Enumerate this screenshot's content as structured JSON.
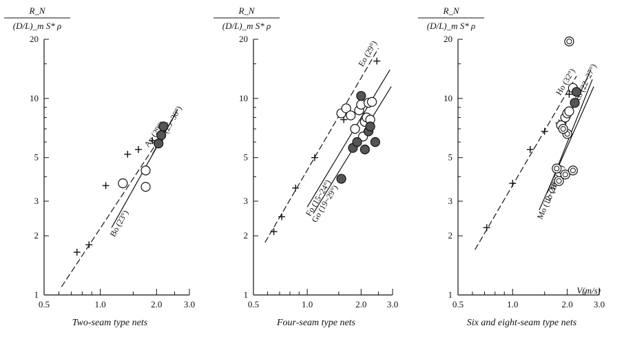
{
  "chart_data": [
    {
      "type": "scatter",
      "panel": "two-seam",
      "caption": "Two-seam type nets",
      "ylabel_num": "R_N",
      "ylabel_den": "(D/L)_m S* ρ",
      "xlabel": "",
      "xlim": [
        0.5,
        3.0
      ],
      "ylim": [
        1,
        20
      ],
      "log_x": true,
      "log_y": true,
      "x_ticks": [
        0.5,
        1.0,
        2.0,
        3.0
      ],
      "x_tick_labels": [
        "0.5",
        "1.0",
        "2.0",
        "3.0"
      ],
      "y_ticks": [
        1,
        2,
        3,
        5,
        10,
        20
      ],
      "y_tick_labels": [
        "1",
        "2",
        "3",
        "5",
        "10",
        "20"
      ],
      "lines": [
        {
          "label": "Ap (29°)",
          "style": "dashed",
          "points": [
            [
              0.62,
              1.1
            ],
            [
              2.25,
              7.0
            ]
          ]
        },
        {
          "label": "Do (25~30°)",
          "style": "solid",
          "points": [
            [
              1.9,
              5.2
            ],
            [
              2.6,
              8.8
            ]
          ]
        },
        {
          "label": "Bo (23°)",
          "style": "solid",
          "points": [
            [
              1.15,
              2.2
            ],
            [
              2.55,
              8.5
            ]
          ]
        }
      ],
      "series": [
        {
          "marker": "cross",
          "points": [
            [
              0.75,
              1.65
            ],
            [
              0.87,
              1.8
            ],
            [
              1.07,
              3.6
            ],
            [
              1.4,
              5.2
            ],
            [
              1.6,
              5.5
            ],
            [
              1.9,
              6.1
            ],
            [
              2.1,
              6.6
            ]
          ]
        },
        {
          "marker": "open-circle",
          "points": [
            [
              1.32,
              3.7
            ],
            [
              1.75,
              4.3
            ],
            [
              1.75,
              3.55
            ]
          ]
        },
        {
          "marker": "filled-circle",
          "points": [
            [
              2.05,
              5.9
            ],
            [
              2.12,
              6.5
            ],
            [
              2.18,
              7.2
            ]
          ]
        }
      ]
    },
    {
      "type": "scatter",
      "panel": "four-seam",
      "caption": "Four-seam type nets",
      "ylabel_num": "R_N",
      "ylabel_den": "(D/L)_m S* ρ",
      "xlabel": "",
      "xlim": [
        0.5,
        3.0
      ],
      "ylim": [
        1,
        20
      ],
      "log_x": true,
      "log_y": true,
      "x_ticks": [
        0.5,
        1.0,
        2.0,
        3.0
      ],
      "x_tick_labels": [
        "0.5",
        "1.0",
        "2.0",
        "3.0"
      ],
      "y_ticks": [
        1,
        2,
        3,
        5,
        10,
        20
      ],
      "y_tick_labels": [
        "1",
        "2",
        "3",
        "5",
        "10",
        "20"
      ],
      "lines": [
        {
          "label": "Eo (29°)",
          "style": "dashed",
          "points": [
            [
              0.58,
              1.85
            ],
            [
              2.5,
              18.0
            ]
          ]
        },
        {
          "label": "Fo (15~24°)",
          "style": "solid",
          "points": [
            [
              1.0,
              2.8
            ],
            [
              2.9,
              14.0
            ]
          ]
        },
        {
          "label": "Go (19~29°)",
          "style": "solid",
          "points": [
            [
              1.08,
              2.6
            ],
            [
              2.95,
              11.5
            ]
          ]
        }
      ],
      "series": [
        {
          "marker": "cross",
          "points": [
            [
              0.65,
              2.1
            ],
            [
              0.72,
              2.5
            ],
            [
              0.86,
              3.5
            ],
            [
              1.1,
              5.0
            ],
            [
              1.6,
              7.8
            ],
            [
              2.45,
              15.5
            ]
          ]
        },
        {
          "marker": "open-circle",
          "points": [
            [
              1.55,
              8.4
            ],
            [
              1.65,
              8.9
            ],
            [
              1.75,
              8.2
            ],
            [
              1.85,
              7.0
            ],
            [
              1.95,
              8.7
            ],
            [
              2.0,
              9.3
            ],
            [
              2.05,
              6.4
            ],
            [
              2.1,
              7.6
            ],
            [
              2.15,
              8.0
            ],
            [
              2.2,
              9.5
            ],
            [
              2.25,
              7.8
            ],
            [
              2.3,
              9.6
            ]
          ]
        },
        {
          "marker": "filled-circle",
          "points": [
            [
              1.55,
              3.9
            ],
            [
              1.8,
              5.6
            ],
            [
              1.9,
              6.0
            ],
            [
              2.0,
              10.3
            ],
            [
              2.1,
              5.5
            ],
            [
              2.2,
              6.8
            ],
            [
              2.25,
              7.2
            ],
            [
              2.4,
              6.0
            ]
          ]
        }
      ]
    },
    {
      "type": "scatter",
      "panel": "six-eight-seam",
      "caption": "Six and eight-seam type nets",
      "ylabel_num": "R_N",
      "ylabel_den": "(D/L)_m S* ρ",
      "xlabel": "V(m/s)",
      "xlim": [
        0.5,
        3.0
      ],
      "ylim": [
        1,
        20
      ],
      "log_x": true,
      "log_y": true,
      "x_ticks": [
        0.5,
        1.0,
        2.0,
        3.0
      ],
      "x_tick_labels": [
        "0.5",
        "1.0",
        "2.0",
        "3.0"
      ],
      "y_ticks": [
        1,
        2,
        3,
        5,
        10,
        20
      ],
      "y_tick_labels": [
        "1",
        "2",
        "3",
        "5",
        "10",
        "20"
      ],
      "lines": [
        {
          "label": "Ho (32°)",
          "style": "dashed",
          "points": [
            [
              0.62,
              1.7
            ],
            [
              2.25,
              13.0
            ]
          ]
        },
        {
          "label": "Ko (22~27°)",
          "style": "solid",
          "points": [
            [
              1.9,
              7.0
            ],
            [
              2.7,
              14.0
            ]
          ]
        },
        {
          "label": "Jo (18~21°)",
          "style": "solid",
          "points": [
            [
              1.55,
              3.3
            ],
            [
              2.75,
              12.5
            ]
          ]
        },
        {
          "label": "Mo (12~28°)",
          "style": "solid",
          "points": [
            [
              1.4,
              2.7
            ],
            [
              2.8,
              11.5
            ]
          ]
        }
      ],
      "series": [
        {
          "marker": "cross",
          "points": [
            [
              0.72,
              2.2
            ],
            [
              1.0,
              3.7
            ],
            [
              1.25,
              5.5
            ],
            [
              1.5,
              6.8
            ],
            [
              1.8,
              7.5
            ],
            [
              2.05,
              10.5
            ]
          ]
        },
        {
          "marker": "open-circle",
          "points": [
            [
              1.85,
              7.3
            ],
            [
              1.95,
              8.0
            ],
            [
              2.0,
              8.4
            ],
            [
              2.05,
              8.6
            ],
            [
              2.15,
              11.3
            ]
          ]
        },
        {
          "marker": "double-circle",
          "points": [
            [
              2.05,
              19.5
            ],
            [
              1.75,
              4.4
            ],
            [
              1.8,
              3.8
            ],
            [
              1.95,
              4.1
            ],
            [
              2.15,
              4.3
            ],
            [
              2.0,
              6.6
            ],
            [
              1.9,
              7.0
            ]
          ]
        },
        {
          "marker": "filled-circle",
          "points": [
            [
              2.2,
              9.5
            ],
            [
              2.25,
              10.8
            ]
          ]
        }
      ]
    }
  ]
}
